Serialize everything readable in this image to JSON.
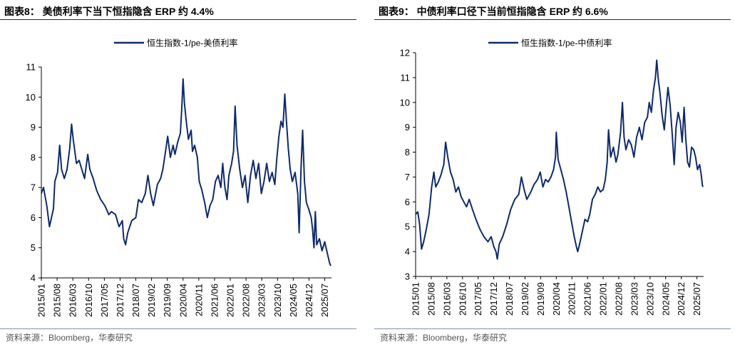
{
  "source_text": "资料来源：Bloomberg，华泰研究",
  "colors": {
    "series": "#0f2a6b",
    "axis": "#000000",
    "rule": "#1b2a55"
  },
  "chart_data": [
    {
      "type": "line",
      "title": "图表8：  美债利率下当下恒指隐含 ERP 约 4.4%",
      "xlabel": "",
      "ylabel": "",
      "ylim": [
        4,
        11
      ],
      "yticks": [
        4,
        5,
        6,
        7,
        8,
        9,
        10,
        11
      ],
      "xlim": [
        2015.0,
        2025.75
      ],
      "xticks": [
        "2015/01",
        "2015/08",
        "2016/03",
        "2016/10",
        "2017/05",
        "2017/12",
        "2018/07",
        "2019/02",
        "2019/09",
        "2020/04",
        "2020/11",
        "2021/06",
        "2022/01",
        "2022/08",
        "2023/03",
        "2023/10",
        "2024/05",
        "2024/12",
        "2025/07"
      ],
      "legend": "top-center",
      "series": [
        {
          "name": "恒生指数-1/pe-美债利率",
          "points": [
            [
              2015.0,
              6.8
            ],
            [
              2015.08,
              7.0
            ],
            [
              2015.2,
              6.4
            ],
            [
              2015.3,
              5.7
            ],
            [
              2015.45,
              6.3
            ],
            [
              2015.5,
              7.2
            ],
            [
              2015.6,
              7.5
            ],
            [
              2015.68,
              8.4
            ],
            [
              2015.75,
              7.6
            ],
            [
              2015.85,
              7.3
            ],
            [
              2015.95,
              7.6
            ],
            [
              2016.05,
              8.3
            ],
            [
              2016.12,
              9.1
            ],
            [
              2016.18,
              8.6
            ],
            [
              2016.3,
              7.8
            ],
            [
              2016.4,
              7.9
            ],
            [
              2016.5,
              7.6
            ],
            [
              2016.6,
              7.3
            ],
            [
              2016.72,
              8.1
            ],
            [
              2016.8,
              7.6
            ],
            [
              2016.92,
              7.3
            ],
            [
              2017.05,
              6.9
            ],
            [
              2017.2,
              6.6
            ],
            [
              2017.35,
              6.4
            ],
            [
              2017.5,
              6.1
            ],
            [
              2017.6,
              6.2
            ],
            [
              2017.75,
              6.1
            ],
            [
              2017.88,
              5.7
            ],
            [
              2018.0,
              5.9
            ],
            [
              2018.05,
              5.3
            ],
            [
              2018.12,
              5.1
            ],
            [
              2018.2,
              5.5
            ],
            [
              2018.35,
              5.9
            ],
            [
              2018.5,
              6.0
            ],
            [
              2018.6,
              6.6
            ],
            [
              2018.72,
              6.5
            ],
            [
              2018.85,
              6.8
            ],
            [
              2018.95,
              7.4
            ],
            [
              2019.05,
              6.8
            ],
            [
              2019.15,
              6.4
            ],
            [
              2019.3,
              7.1
            ],
            [
              2019.42,
              7.3
            ],
            [
              2019.5,
              7.6
            ],
            [
              2019.6,
              8.2
            ],
            [
              2019.68,
              8.7
            ],
            [
              2019.78,
              8.0
            ],
            [
              2019.88,
              8.4
            ],
            [
              2019.95,
              8.1
            ],
            [
              2020.05,
              8.5
            ],
            [
              2020.15,
              8.8
            ],
            [
              2020.2,
              9.6
            ],
            [
              2020.25,
              10.6
            ],
            [
              2020.3,
              9.8
            ],
            [
              2020.38,
              9.1
            ],
            [
              2020.45,
              8.6
            ],
            [
              2020.55,
              8.9
            ],
            [
              2020.6,
              8.2
            ],
            [
              2020.68,
              8.4
            ],
            [
              2020.78,
              8.0
            ],
            [
              2020.85,
              7.2
            ],
            [
              2020.95,
              6.9
            ],
            [
              2021.05,
              6.5
            ],
            [
              2021.15,
              6.0
            ],
            [
              2021.25,
              6.4
            ],
            [
              2021.35,
              6.6
            ],
            [
              2021.45,
              7.2
            ],
            [
              2021.55,
              7.4
            ],
            [
              2021.65,
              7.0
            ],
            [
              2021.72,
              7.8
            ],
            [
              2021.8,
              7.0
            ],
            [
              2021.88,
              6.6
            ],
            [
              2021.95,
              7.4
            ],
            [
              2022.05,
              7.8
            ],
            [
              2022.12,
              8.2
            ],
            [
              2022.18,
              9.7
            ],
            [
              2022.25,
              8.4
            ],
            [
              2022.35,
              7.6
            ],
            [
              2022.45,
              7.0
            ],
            [
              2022.55,
              7.4
            ],
            [
              2022.65,
              6.5
            ],
            [
              2022.75,
              7.4
            ],
            [
              2022.85,
              7.9
            ],
            [
              2022.95,
              7.3
            ],
            [
              2023.05,
              7.8
            ],
            [
              2023.15,
              6.8
            ],
            [
              2023.25,
              7.2
            ],
            [
              2023.35,
              7.8
            ],
            [
              2023.45,
              7.2
            ],
            [
              2023.55,
              7.5
            ],
            [
              2023.65,
              7.1
            ],
            [
              2023.72,
              7.9
            ],
            [
              2023.8,
              8.7
            ],
            [
              2023.88,
              9.2
            ],
            [
              2023.95,
              9.0
            ],
            [
              2024.02,
              10.1
            ],
            [
              2024.08,
              9.2
            ],
            [
              2024.15,
              8.3
            ],
            [
              2024.22,
              7.6
            ],
            [
              2024.3,
              7.2
            ],
            [
              2024.4,
              7.5
            ],
            [
              2024.5,
              6.8
            ],
            [
              2024.55,
              5.5
            ],
            [
              2024.62,
              7.6
            ],
            [
              2024.68,
              8.9
            ],
            [
              2024.75,
              7.2
            ],
            [
              2024.82,
              6.5
            ],
            [
              2024.9,
              6.3
            ],
            [
              2025.0,
              6.0
            ],
            [
              2025.05,
              5.6
            ],
            [
              2025.1,
              5.0
            ],
            [
              2025.15,
              6.2
            ],
            [
              2025.2,
              5.1
            ],
            [
              2025.3,
              5.3
            ],
            [
              2025.4,
              4.9
            ],
            [
              2025.5,
              5.2
            ],
            [
              2025.6,
              4.8
            ],
            [
              2025.68,
              4.5
            ],
            [
              2025.72,
              4.4
            ]
          ]
        }
      ]
    },
    {
      "type": "line",
      "title": "图表9：  中债利率口径下当前恒指隐含 ERP 约 6.6%",
      "xlabel": "",
      "ylabel": "",
      "ylim": [
        3,
        12
      ],
      "yticks": [
        3,
        4,
        5,
        6,
        7,
        8,
        9,
        10,
        11,
        12
      ],
      "xlim": [
        2015.0,
        2025.75
      ],
      "xticks": [
        "2015/01",
        "2015/08",
        "2016/03",
        "2016/10",
        "2017/05",
        "2017/12",
        "2018/07",
        "2019/02",
        "2019/09",
        "2020/04",
        "2020/11",
        "2021/06",
        "2022/01",
        "2022/08",
        "2023/03",
        "2023/10",
        "2024/05",
        "2024/12",
        "2025/07"
      ],
      "legend": "top-center",
      "series": [
        {
          "name": "恒生指数-1/pe-中债利率",
          "points": [
            [
              2015.0,
              5.5
            ],
            [
              2015.08,
              5.6
            ],
            [
              2015.15,
              5.1
            ],
            [
              2015.22,
              4.1
            ],
            [
              2015.3,
              4.4
            ],
            [
              2015.4,
              4.9
            ],
            [
              2015.5,
              5.5
            ],
            [
              2015.6,
              6.6
            ],
            [
              2015.68,
              7.2
            ],
            [
              2015.75,
              6.6
            ],
            [
              2015.85,
              6.8
            ],
            [
              2015.95,
              7.1
            ],
            [
              2016.05,
              7.5
            ],
            [
              2016.12,
              8.4
            ],
            [
              2016.2,
              7.8
            ],
            [
              2016.3,
              7.2
            ],
            [
              2016.4,
              6.9
            ],
            [
              2016.5,
              6.4
            ],
            [
              2016.6,
              6.6
            ],
            [
              2016.7,
              6.2
            ],
            [
              2016.8,
              6.0
            ],
            [
              2016.9,
              5.8
            ],
            [
              2017.0,
              6.1
            ],
            [
              2017.12,
              5.7
            ],
            [
              2017.25,
              5.3
            ],
            [
              2017.4,
              4.9
            ],
            [
              2017.55,
              4.6
            ],
            [
              2017.7,
              4.4
            ],
            [
              2017.82,
              4.6
            ],
            [
              2017.92,
              4.2
            ],
            [
              2018.0,
              4.0
            ],
            [
              2018.05,
              3.7
            ],
            [
              2018.12,
              4.3
            ],
            [
              2018.25,
              4.6
            ],
            [
              2018.4,
              5.1
            ],
            [
              2018.55,
              5.7
            ],
            [
              2018.7,
              6.1
            ],
            [
              2018.85,
              6.3
            ],
            [
              2018.95,
              7.0
            ],
            [
              2019.05,
              6.5
            ],
            [
              2019.15,
              6.1
            ],
            [
              2019.3,
              6.4
            ],
            [
              2019.42,
              6.7
            ],
            [
              2019.55,
              6.9
            ],
            [
              2019.65,
              7.2
            ],
            [
              2019.75,
              6.6
            ],
            [
              2019.85,
              6.9
            ],
            [
              2019.95,
              6.8
            ],
            [
              2020.05,
              7.0
            ],
            [
              2020.15,
              7.3
            ],
            [
              2020.22,
              7.8
            ],
            [
              2020.25,
              8.8
            ],
            [
              2020.32,
              7.7
            ],
            [
              2020.42,
              7.3
            ],
            [
              2020.52,
              6.9
            ],
            [
              2020.62,
              6.4
            ],
            [
              2020.72,
              5.8
            ],
            [
              2020.82,
              5.2
            ],
            [
              2020.92,
              4.6
            ],
            [
              2021.0,
              4.2
            ],
            [
              2021.05,
              4.0
            ],
            [
              2021.12,
              4.3
            ],
            [
              2021.22,
              4.8
            ],
            [
              2021.32,
              5.3
            ],
            [
              2021.42,
              5.2
            ],
            [
              2021.5,
              5.5
            ],
            [
              2021.6,
              6.1
            ],
            [
              2021.7,
              6.3
            ],
            [
              2021.8,
              6.6
            ],
            [
              2021.9,
              6.4
            ],
            [
              2022.0,
              6.5
            ],
            [
              2022.08,
              6.9
            ],
            [
              2022.15,
              7.6
            ],
            [
              2022.2,
              8.9
            ],
            [
              2022.28,
              7.8
            ],
            [
              2022.38,
              8.2
            ],
            [
              2022.48,
              7.6
            ],
            [
              2022.55,
              7.9
            ],
            [
              2022.65,
              8.8
            ],
            [
              2022.72,
              10.0
            ],
            [
              2022.78,
              8.6
            ],
            [
              2022.85,
              8.1
            ],
            [
              2022.95,
              8.5
            ],
            [
              2023.05,
              8.3
            ],
            [
              2023.15,
              7.8
            ],
            [
              2023.25,
              8.6
            ],
            [
              2023.35,
              9.0
            ],
            [
              2023.45,
              8.5
            ],
            [
              2023.55,
              9.2
            ],
            [
              2023.65,
              9.4
            ],
            [
              2023.72,
              10.0
            ],
            [
              2023.8,
              9.6
            ],
            [
              2023.88,
              10.5
            ],
            [
              2023.95,
              11.0
            ],
            [
              2024.0,
              11.7
            ],
            [
              2024.06,
              10.9
            ],
            [
              2024.12,
              10.4
            ],
            [
              2024.2,
              9.5
            ],
            [
              2024.28,
              8.9
            ],
            [
              2024.35,
              9.8
            ],
            [
              2024.42,
              10.6
            ],
            [
              2024.5,
              9.9
            ],
            [
              2024.58,
              8.7
            ],
            [
              2024.65,
              7.5
            ],
            [
              2024.72,
              9.0
            ],
            [
              2024.8,
              9.6
            ],
            [
              2024.88,
              9.2
            ],
            [
              2024.95,
              8.4
            ],
            [
              2025.02,
              9.8
            ],
            [
              2025.08,
              8.6
            ],
            [
              2025.15,
              7.6
            ],
            [
              2025.22,
              7.4
            ],
            [
              2025.3,
              8.2
            ],
            [
              2025.38,
              8.1
            ],
            [
              2025.45,
              7.8
            ],
            [
              2025.52,
              7.3
            ],
            [
              2025.6,
              7.5
            ],
            [
              2025.66,
              7.1
            ],
            [
              2025.7,
              6.7
            ],
            [
              2025.72,
              6.6
            ]
          ]
        }
      ]
    }
  ]
}
